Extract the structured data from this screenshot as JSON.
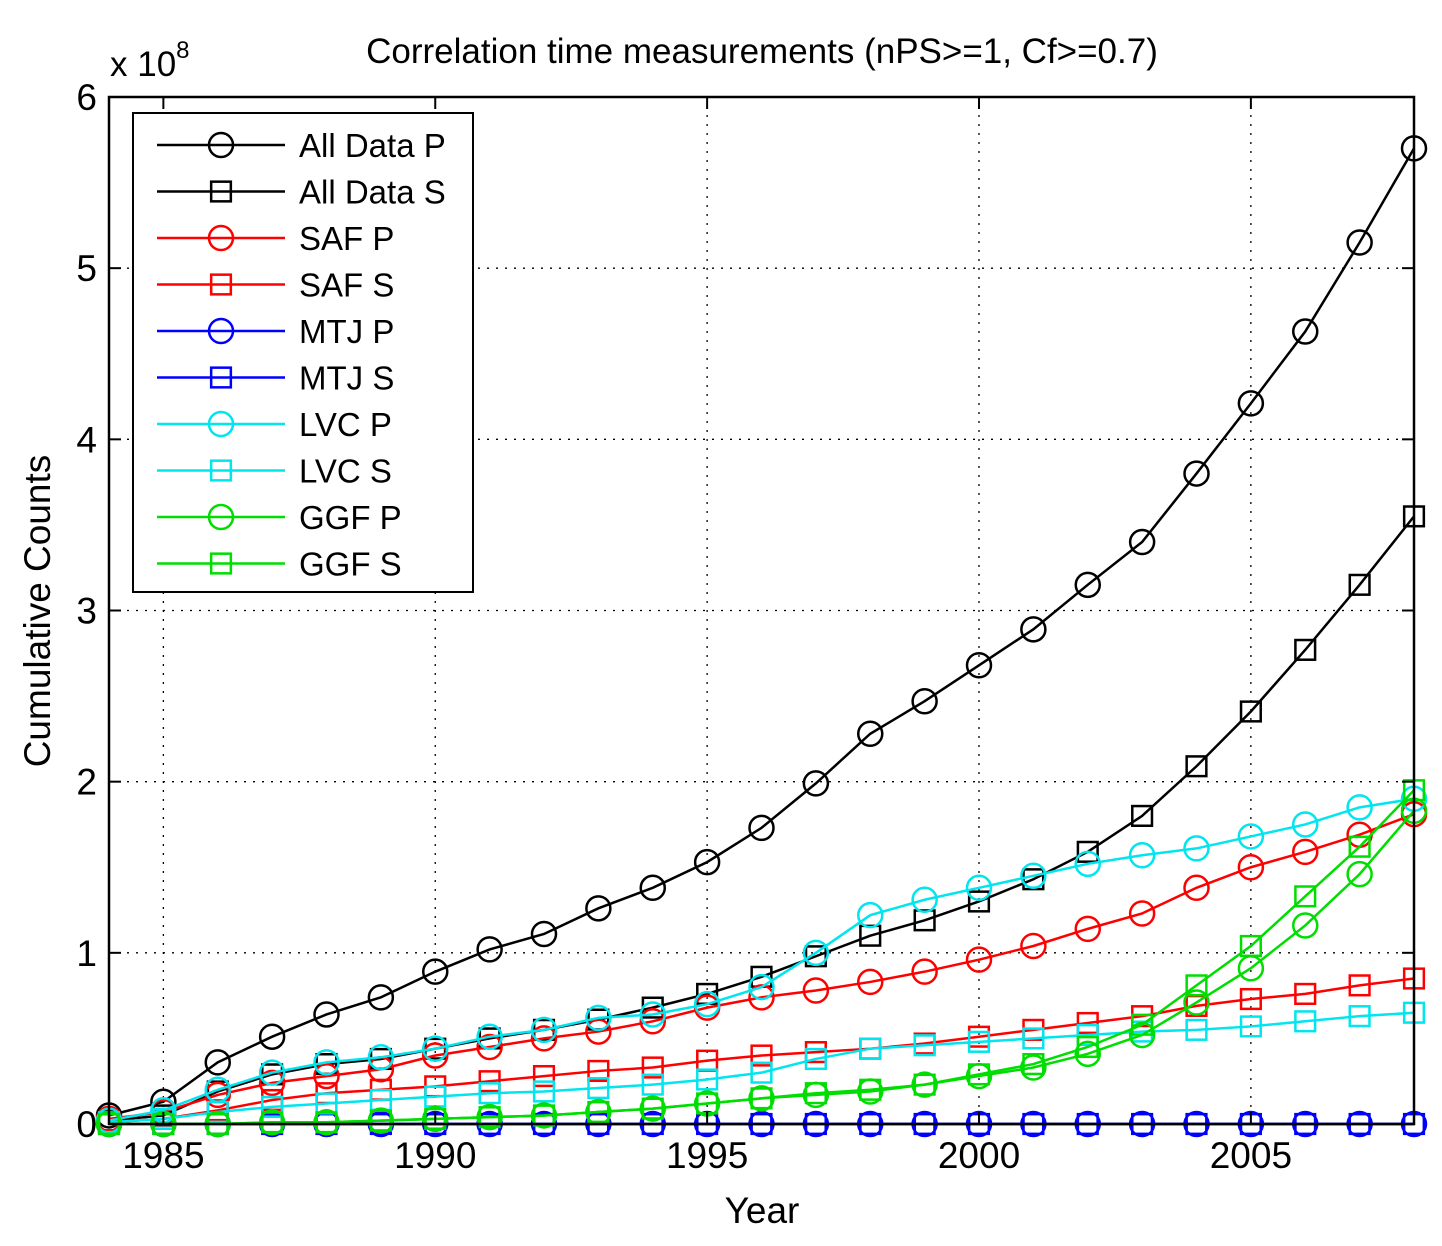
{
  "chart_data": {
    "type": "line",
    "title": "Correlation time measurements (nPS>=1, Cf>=0.7)",
    "xlabel": "Year",
    "ylabel": "Cumulative Counts",
    "y_multiplier_label": "x 10",
    "y_multiplier_exponent": "8",
    "xlim": [
      1984,
      2008
    ],
    "ylim": [
      0,
      6
    ],
    "xticks": [
      1985,
      1990,
      1995,
      2000,
      2005
    ],
    "yticks": [
      0,
      1,
      2,
      3,
      4,
      5,
      6
    ],
    "grid": true,
    "legend_position": "top-left",
    "x": [
      1984,
      1985,
      1986,
      1987,
      1988,
      1989,
      1990,
      1991,
      1992,
      1993,
      1994,
      1995,
      1996,
      1997,
      1998,
      1999,
      2000,
      2001,
      2002,
      2003,
      2004,
      2005,
      2006,
      2007,
      2008
    ],
    "series": [
      {
        "name": "All Data P",
        "color": "#000000",
        "marker": "circle",
        "values": [
          0.05,
          0.13,
          0.36,
          0.51,
          0.64,
          0.74,
          0.89,
          1.02,
          1.11,
          1.26,
          1.38,
          1.53,
          1.73,
          1.99,
          2.28,
          2.47,
          2.68,
          2.89,
          3.15,
          3.4,
          3.8,
          4.21,
          4.63,
          5.15,
          5.7
        ]
      },
      {
        "name": "All Data S",
        "color": "#000000",
        "marker": "square",
        "values": [
          0.02,
          0.05,
          0.19,
          0.29,
          0.35,
          0.38,
          0.44,
          0.5,
          0.55,
          0.61,
          0.68,
          0.76,
          0.86,
          0.98,
          1.1,
          1.19,
          1.3,
          1.43,
          1.59,
          1.8,
          2.09,
          2.41,
          2.77,
          3.15,
          3.55
        ]
      },
      {
        "name": "SAF P",
        "color": "#ff0000",
        "marker": "circle",
        "values": [
          0.03,
          0.07,
          0.17,
          0.24,
          0.28,
          0.32,
          0.4,
          0.45,
          0.5,
          0.54,
          0.6,
          0.68,
          0.74,
          0.78,
          0.83,
          0.89,
          0.96,
          1.04,
          1.14,
          1.23,
          1.38,
          1.5,
          1.59,
          1.69,
          1.81
        ]
      },
      {
        "name": "SAF S",
        "color": "#ff0000",
        "marker": "square",
        "values": [
          0.01,
          0.03,
          0.08,
          0.14,
          0.18,
          0.2,
          0.22,
          0.25,
          0.28,
          0.31,
          0.33,
          0.37,
          0.4,
          0.42,
          0.44,
          0.47,
          0.51,
          0.55,
          0.59,
          0.63,
          0.69,
          0.73,
          0.76,
          0.81,
          0.85
        ]
      },
      {
        "name": "MTJ P",
        "color": "#0000ff",
        "marker": "circle",
        "values": [
          0,
          0,
          0,
          0,
          0,
          0,
          0,
          0,
          0,
          0,
          0,
          0,
          0,
          0,
          0,
          0,
          0,
          0,
          0,
          0,
          0,
          0,
          0,
          0,
          0
        ]
      },
      {
        "name": "MTJ S",
        "color": "#0000ff",
        "marker": "square",
        "values": [
          0,
          0,
          0,
          0,
          0,
          0,
          0,
          0,
          0,
          0,
          0,
          0,
          0,
          0,
          0,
          0,
          0,
          0,
          0,
          0,
          0,
          0,
          0,
          0,
          0
        ]
      },
      {
        "name": "LVC P",
        "color": "#00e5ee",
        "marker": "circle",
        "values": [
          0.02,
          0.08,
          0.2,
          0.3,
          0.36,
          0.39,
          0.44,
          0.51,
          0.55,
          0.62,
          0.64,
          0.7,
          0.8,
          1.0,
          1.22,
          1.31,
          1.38,
          1.45,
          1.52,
          1.57,
          1.61,
          1.68,
          1.75,
          1.85,
          1.9
        ]
      },
      {
        "name": "LVC S",
        "color": "#00e5ee",
        "marker": "square",
        "values": [
          0.01,
          0.03,
          0.07,
          0.1,
          0.12,
          0.14,
          0.16,
          0.18,
          0.19,
          0.21,
          0.23,
          0.26,
          0.3,
          0.38,
          0.44,
          0.46,
          0.48,
          0.5,
          0.52,
          0.54,
          0.55,
          0.57,
          0.6,
          0.63,
          0.65
        ]
      },
      {
        "name": "GGF P",
        "color": "#00dd00",
        "marker": "circle",
        "values": [
          0,
          0,
          0,
          0.01,
          0.01,
          0.02,
          0.03,
          0.04,
          0.05,
          0.07,
          0.09,
          0.12,
          0.15,
          0.17,
          0.19,
          0.23,
          0.28,
          0.33,
          0.41,
          0.52,
          0.71,
          0.91,
          1.16,
          1.46,
          1.83
        ]
      },
      {
        "name": "GGF S",
        "color": "#00dd00",
        "marker": "square",
        "values": [
          0,
          0,
          0,
          0.01,
          0.01,
          0.02,
          0.03,
          0.04,
          0.05,
          0.07,
          0.09,
          0.12,
          0.15,
          0.18,
          0.2,
          0.23,
          0.29,
          0.35,
          0.45,
          0.58,
          0.81,
          1.04,
          1.33,
          1.62,
          1.95
        ]
      }
    ]
  }
}
